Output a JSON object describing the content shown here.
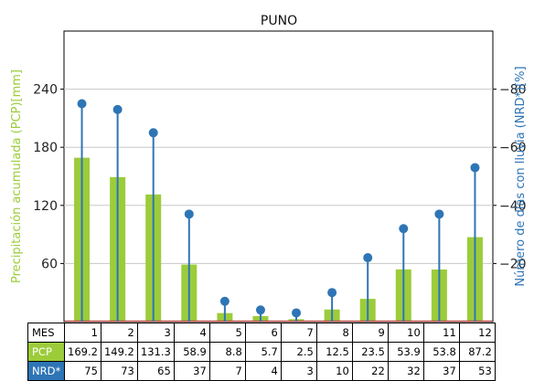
{
  "chart_data": {
    "type": "bar+lollipop",
    "title": "PUNO",
    "ylabel_left": "Precipitación acumulada (PCP)[mm]",
    "ylabel_right": "Número de días con lluvia (NRD*)[%]",
    "left_axis": {
      "ylim": [
        0,
        300
      ],
      "ticks": [
        60,
        120,
        180,
        240
      ]
    },
    "right_axis": {
      "ylim": [
        0,
        100
      ],
      "ticks": [
        20,
        40,
        60,
        80
      ]
    },
    "grid": true,
    "categories": [
      "1",
      "2",
      "3",
      "4",
      "5",
      "6",
      "7",
      "8",
      "9",
      "10",
      "11",
      "12"
    ],
    "series": [
      {
        "name": "PCP",
        "type": "bar",
        "axis": "left",
        "color": "#9ccc3a",
        "values": [
          169.2,
          149.2,
          131.3,
          58.9,
          8.8,
          5.7,
          2.5,
          12.5,
          23.5,
          53.9,
          53.8,
          87.2
        ]
      },
      {
        "name": "NRD*",
        "type": "lollipop",
        "axis": "right",
        "color": "#2e75b6",
        "values": [
          75,
          73,
          65,
          37,
          7,
          4,
          3,
          10,
          22,
          32,
          37,
          53
        ]
      }
    ]
  },
  "table": {
    "header_label": "MES",
    "pcp_label": "PCP",
    "nrd_label": "NRD*",
    "months": [
      "1",
      "2",
      "3",
      "4",
      "5",
      "6",
      "7",
      "8",
      "9",
      "10",
      "11",
      "12"
    ],
    "pcp": [
      "169.2",
      "149.2",
      "131.3",
      "58.9",
      "8.8",
      "5.7",
      "2.5",
      "12.5",
      "23.5",
      "53.9",
      "53.8",
      "87.2"
    ],
    "nrd": [
      "75",
      "73",
      "65",
      "37",
      "7",
      "4",
      "3",
      "10",
      "22",
      "32",
      "37",
      "53"
    ]
  }
}
